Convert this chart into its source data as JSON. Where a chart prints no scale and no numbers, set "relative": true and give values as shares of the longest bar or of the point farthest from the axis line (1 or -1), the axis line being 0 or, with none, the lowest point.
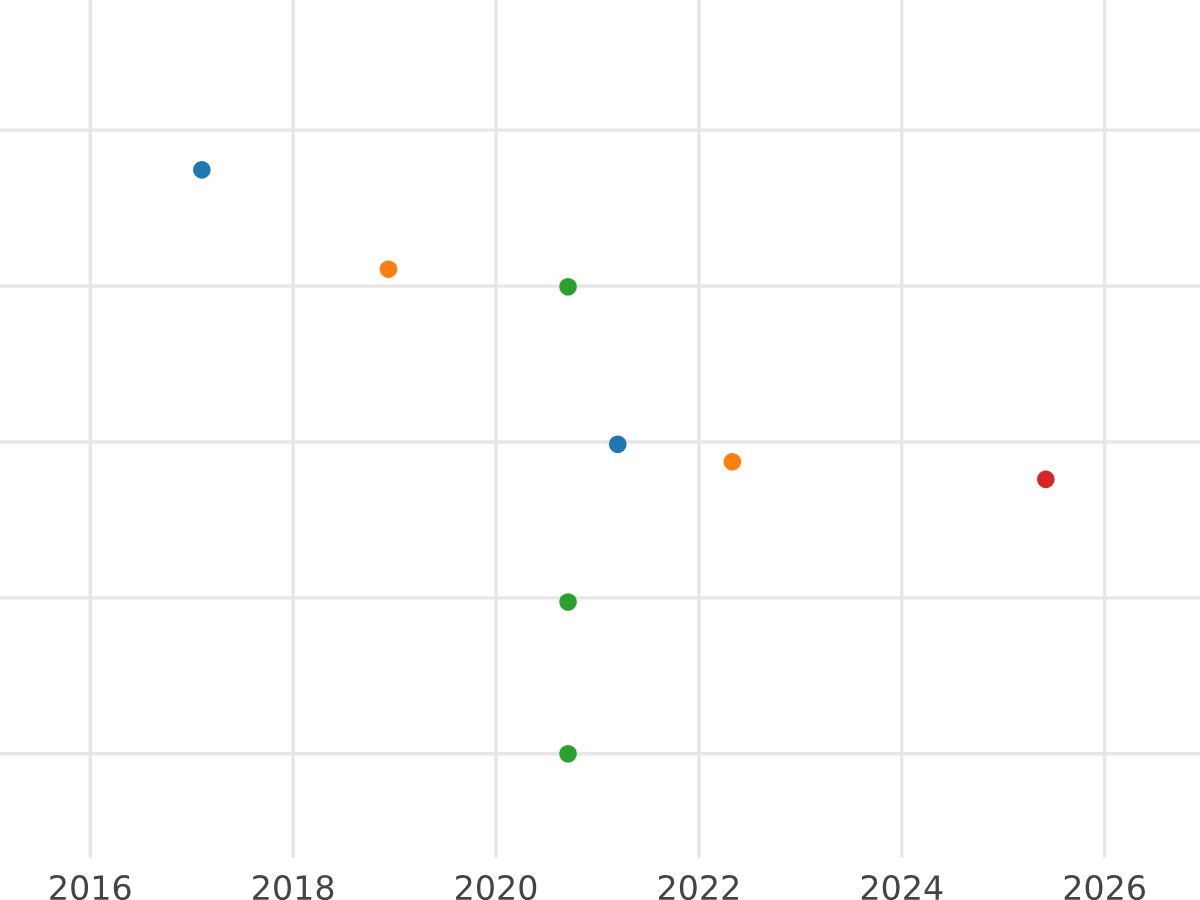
{
  "chart_data": {
    "type": "scatter",
    "relative": true,
    "x": [
      2017.1,
      2018.94,
      2020.71,
      2021.2,
      2022.33,
      2025.42,
      2020.71,
      2020.71
    ],
    "values": [
      1.0,
      0.83,
      0.8,
      0.53,
      0.5,
      0.47,
      0.26,
      0.0
    ],
    "colors": [
      "#1f77b4",
      "#ff7f0e",
      "#2ca02c",
      "#1f77b4",
      "#ff7f0e",
      "#d62728",
      "#2ca02c",
      "#2ca02c"
    ],
    "xlim": [
      2015.11,
      2026.94
    ],
    "xticks": [
      2016,
      2018,
      2020,
      2022,
      2024,
      2026
    ],
    "grid": true,
    "marker": "circle"
  }
}
